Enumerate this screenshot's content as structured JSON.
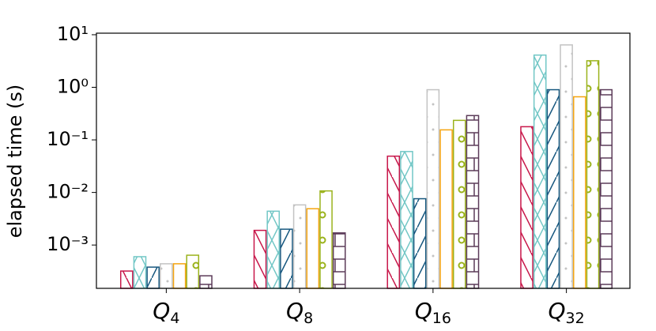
{
  "chart_data": {
    "type": "bar",
    "y_label": "elapsed time (s)",
    "yscale": "log",
    "categories": [
      "Q4",
      "Q8",
      "Q16",
      "Q32"
    ],
    "series": [
      {
        "color": "#c8174a",
        "values": [
          0.00032,
          0.0019,
          0.049,
          0.178
        ]
      },
      {
        "color": "#72c7c6",
        "values": [
          0.0006,
          0.0044,
          0.06,
          4.1
        ]
      },
      {
        "color": "#17587f",
        "values": [
          0.00038,
          0.002,
          0.0076,
          0.9
        ]
      },
      {
        "color": "#c3c3c3",
        "values": [
          0.00044,
          0.0058,
          0.9,
          6.4
        ]
      },
      {
        "color": "#f5a40f",
        "values": [
          0.00044,
          0.0049,
          0.155,
          0.66
        ]
      },
      {
        "color": "#9bb31c",
        "values": [
          0.00064,
          0.0107,
          0.235,
          3.2
        ]
      },
      {
        "color": "#5c3b59",
        "values": [
          0.00026,
          0.0017,
          0.29,
          0.9
        ]
      }
    ],
    "ylim": [
      0.00015,
      10.7
    ],
    "yticks": [
      {
        "value": 0.001,
        "label": "10⁻³"
      },
      {
        "value": 0.01,
        "label": "10⁻²"
      },
      {
        "value": 0.1,
        "label": "10⁻¹"
      },
      {
        "value": 1,
        "label": "10⁰"
      },
      {
        "value": 10,
        "label": "10¹"
      }
    ]
  }
}
